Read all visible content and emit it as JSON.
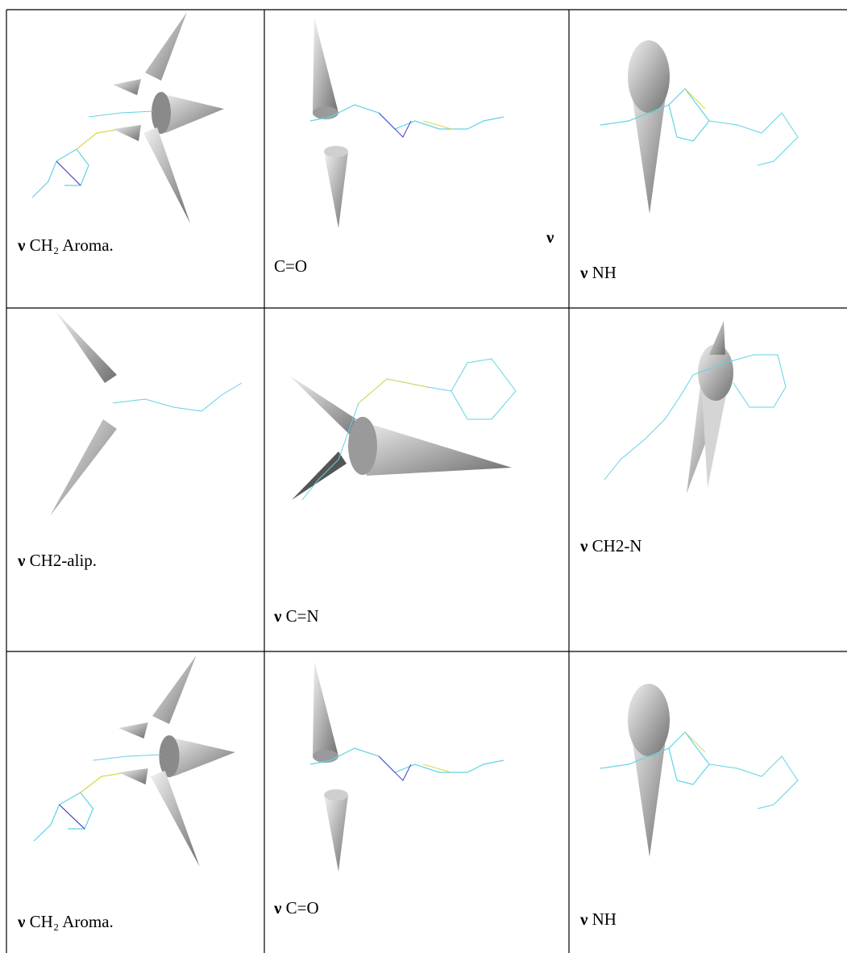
{
  "table": {
    "rows": [
      [
        {
          "symbol": "ν",
          "label": "CH₂ Aroma."
        },
        {
          "symbol": "ν",
          "label": "C=O"
        },
        {
          "symbol": "ν",
          "label": "NH"
        }
      ],
      [
        {
          "symbol": "ν",
          "label": "CH2-alip."
        },
        {
          "symbol": "ν",
          "label": "C=N"
        },
        {
          "symbol": "ν",
          "label": "CH2-N"
        }
      ],
      [
        {
          "symbol": "ν",
          "label": "CH₂ Aroma."
        },
        {
          "symbol": "ν",
          "label": "C=O"
        },
        {
          "symbol": "ν",
          "label": "NH"
        }
      ]
    ]
  }
}
